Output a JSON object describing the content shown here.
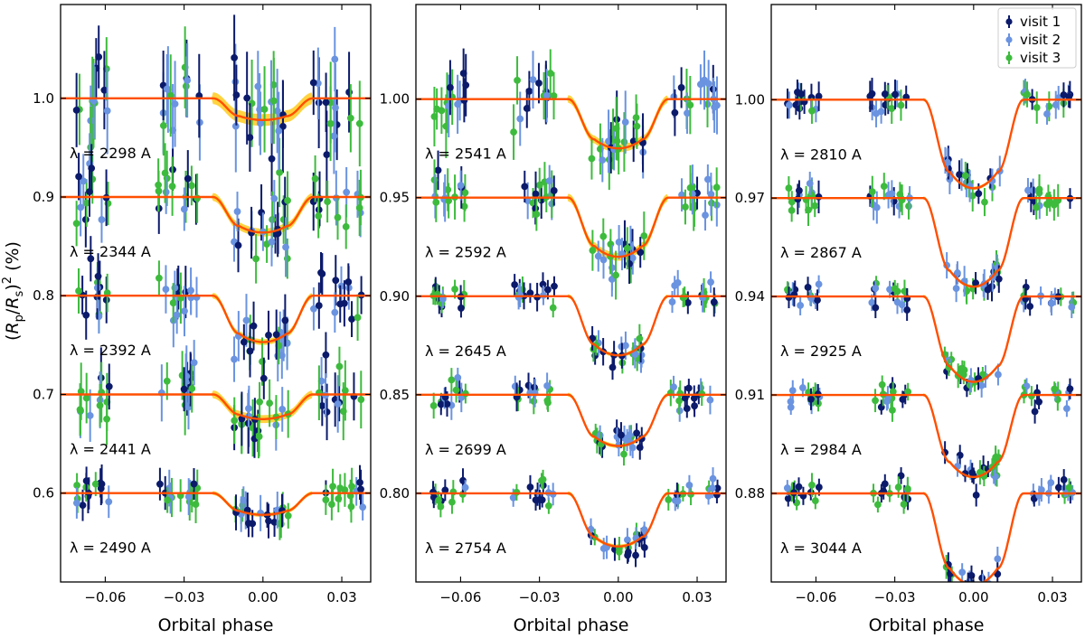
{
  "chart_data": {
    "type": "scatter",
    "ylabel": "(R_p/R_s)^2 (%)",
    "xlabel": "Orbital phase",
    "xlim": [
      -0.077,
      0.041
    ],
    "xticks": [
      -0.06,
      -0.03,
      0.0,
      0.03
    ],
    "xtick_labels": [
      "−0.06",
      "−0.03",
      "0.00",
      "0.03"
    ],
    "colors": {
      "visit1": "#0b1a6b",
      "visit2": "#6a93e0",
      "visit3": "#3dbb3d",
      "model": "#ff4f00",
      "band": "#ffc400"
    },
    "transit": {
      "t1": -0.019,
      "t2": -0.009,
      "t3": 0.009,
      "t4": 0.019
    },
    "legend": {
      "position": "upper right",
      "entries": [
        {
          "label": "visit  1",
          "series": "visit1"
        },
        {
          "label": "visit  2",
          "series": "visit2"
        },
        {
          "label": "visit  3",
          "series": "visit3"
        }
      ]
    },
    "panels": [
      {
        "ylim": [
          0.51,
          1.095
        ],
        "yticks": [
          0.6,
          0.7,
          0.8,
          0.9,
          1.0
        ],
        "ytick_labels": [
          "0.6",
          "0.7",
          "0.8",
          "0.9",
          "1.0"
        ],
        "curves": [
          {
            "wavelength_label": "λ = 2298 A",
            "baseline": 1.0,
            "depth": 0.022,
            "scatter": 0.035,
            "err": 0.038,
            "band": 0.006
          },
          {
            "wavelength_label": "λ = 2344 A",
            "baseline": 0.9,
            "depth": 0.036,
            "scatter": 0.022,
            "err": 0.025,
            "band": 0.004
          },
          {
            "wavelength_label": "λ = 2392 A",
            "baseline": 0.8,
            "depth": 0.047,
            "scatter": 0.018,
            "err": 0.022,
            "band": 0.003
          },
          {
            "wavelength_label": "λ = 2441 A",
            "baseline": 0.7,
            "depth": 0.025,
            "scatter": 0.022,
            "err": 0.025,
            "band": 0.004
          },
          {
            "wavelength_label": "λ = 2490 A",
            "baseline": 0.6,
            "depth": 0.022,
            "scatter": 0.012,
            "err": 0.016,
            "band": 0.002
          }
        ]
      },
      {
        "ylim": [
          0.755,
          1.048
        ],
        "yticks": [
          0.8,
          0.85,
          0.9,
          0.95,
          1.0
        ],
        "ytick_labels": [
          "0.80",
          "0.85",
          "0.90",
          "0.95",
          "1.00"
        ],
        "curves": [
          {
            "wavelength_label": "λ = 2541 A",
            "baseline": 1.0,
            "depth": 0.025,
            "scatter": 0.011,
            "err": 0.013,
            "band": 0.002
          },
          {
            "wavelength_label": "λ = 2592 A",
            "baseline": 0.95,
            "depth": 0.03,
            "scatter": 0.008,
            "err": 0.01,
            "band": 0.002
          },
          {
            "wavelength_label": "λ = 2645 A",
            "baseline": 0.9,
            "depth": 0.03,
            "scatter": 0.005,
            "err": 0.006,
            "band": 0.001
          },
          {
            "wavelength_label": "λ = 2699 A",
            "baseline": 0.85,
            "depth": 0.026,
            "scatter": 0.005,
            "err": 0.006,
            "band": 0.001
          },
          {
            "wavelength_label": "λ = 2754 A",
            "baseline": 0.8,
            "depth": 0.027,
            "scatter": 0.004,
            "err": 0.005,
            "band": 0.001
          }
        ]
      },
      {
        "ylim": [
          0.853,
          1.029
        ],
        "yticks": [
          0.88,
          0.91,
          0.94,
          0.97,
          1.0
        ],
        "ytick_labels": [
          "0.88",
          "0.91",
          "0.94",
          "0.97",
          "1.00"
        ],
        "curves": [
          {
            "wavelength_label": "λ = 2810 A",
            "baseline": 1.0,
            "depth": 0.027,
            "scatter": 0.003,
            "err": 0.004,
            "band": 0.0005
          },
          {
            "wavelength_label": "λ = 2867 A",
            "baseline": 0.97,
            "depth": 0.027,
            "scatter": 0.003,
            "err": 0.004,
            "band": 0.0005
          },
          {
            "wavelength_label": "λ = 2925 A",
            "baseline": 0.94,
            "depth": 0.026,
            "scatter": 0.003,
            "err": 0.003,
            "band": 0.0005
          },
          {
            "wavelength_label": "λ = 2984 A",
            "baseline": 0.91,
            "depth": 0.025,
            "scatter": 0.003,
            "err": 0.003,
            "band": 0.0005
          },
          {
            "wavelength_label": "λ = 3044 A",
            "baseline": 0.88,
            "depth": 0.028,
            "scatter": 0.003,
            "err": 0.003,
            "band": 0.0005
          }
        ]
      }
    ]
  }
}
